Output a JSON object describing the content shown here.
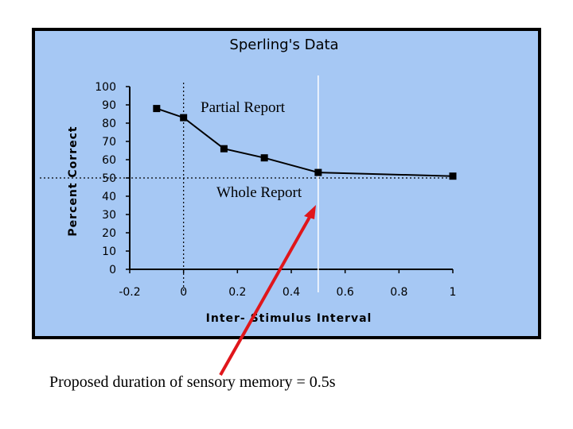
{
  "chart_data": {
    "type": "line",
    "title": "Sperling's Data",
    "xlabel": "Inter- Stimulus Interval",
    "ylabel": "Percent Correct",
    "xlim": [
      -0.2,
      1
    ],
    "ylim": [
      0,
      100
    ],
    "x_ticks": [
      -0.2,
      0,
      0.2,
      0.4,
      0.6,
      0.8,
      1
    ],
    "x_tick_labels": [
      "-0.2",
      "0",
      "0.2",
      "0.4",
      "0.6",
      "0.8",
      "1"
    ],
    "y_ticks": [
      0,
      10,
      20,
      30,
      40,
      50,
      60,
      70,
      80,
      90,
      100
    ],
    "y_tick_labels": [
      "0",
      "10",
      "20",
      "30",
      "40",
      "50",
      "60",
      "70",
      "80",
      "90",
      "100"
    ],
    "grid": false,
    "background_color": "#a6c8f4",
    "series": [
      {
        "name": "Partial Report",
        "x": [
          -0.1,
          0,
          0.15,
          0.3,
          0.5,
          1
        ],
        "y": [
          88,
          83,
          66,
          61,
          53,
          51
        ],
        "color": "#000000",
        "marker": "square"
      }
    ],
    "reference_lines": [
      {
        "kind": "vertical",
        "x": 0,
        "style": "dotted",
        "color": "#000000"
      },
      {
        "kind": "horizontal",
        "y": 50,
        "style": "dotted",
        "color": "#000000",
        "label": "Whole Report"
      },
      {
        "kind": "vertical",
        "x": 0.5,
        "style": "solid",
        "color": "#ffffff"
      }
    ]
  },
  "annotations": {
    "caption": "Proposed duration of sensory memory = 0.5s",
    "arrow_color": "#e0161b"
  }
}
